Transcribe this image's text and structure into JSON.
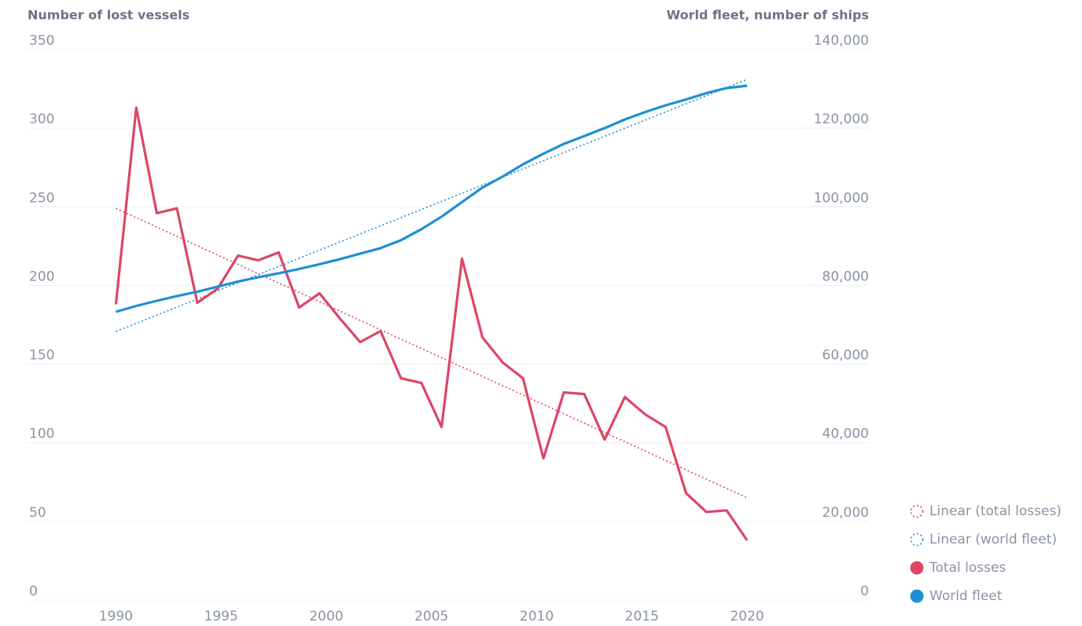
{
  "chart_data": {
    "type": "line",
    "y_label": "Number of lost vessels",
    "y2_label": "World fleet, number of ships",
    "xlim": [
      1985.8,
      2022.8
    ],
    "xticks": [
      1990,
      1995,
      2000,
      2005,
      2010,
      2015,
      2020
    ],
    "ylim": [
      0,
      350
    ],
    "yticks": [
      0,
      50,
      100,
      150,
      200,
      250,
      300,
      350
    ],
    "y2lim": [
      0,
      140000
    ],
    "y2ticks": [
      0,
      {
        "value": 20000,
        "label": "20,000"
      },
      {
        "value": 40000,
        "label": "40,000"
      },
      {
        "value": 60000,
        "label": "60,000"
      },
      {
        "value": 80000,
        "label": "80,000"
      },
      {
        "value": 100000,
        "label": "100,000"
      },
      {
        "value": 120000,
        "label": "120,000"
      },
      {
        "value": 140000,
        "label": "140,000"
      }
    ],
    "grid": true,
    "legend": "right",
    "series": [
      {
        "name": "Linear (total losses)",
        "color": "#dc4666",
        "style": "dotted",
        "x": [
          1990,
          2020
        ],
        "values": [
          249,
          65
        ]
      },
      {
        "name": "Linear (world fleet)",
        "color": "#1f8fd2",
        "style": "dotted",
        "axis": "y2",
        "x": [
          1990,
          2020
        ],
        "values": [
          68300,
          132400
        ]
      },
      {
        "name": "Total losses",
        "color": "#dc4666",
        "style": "solid",
        "x": [
          1990,
          1990.97,
          1991.94,
          1992.9,
          1993.87,
          1994.84,
          1995.81,
          1996.77,
          1997.74,
          1998.71,
          1999.68,
          2000.65,
          2001.61,
          2002.58,
          2003.55,
          2004.52,
          2005.48,
          2006.45,
          2007.42,
          2008.39,
          2009.35,
          2010.32,
          2011.29,
          2012.26,
          2013.23,
          2014.19,
          2015.16,
          2016.13,
          2017.1,
          2018.06,
          2019.03,
          2020
        ],
        "values": [
          188,
          313,
          246,
          249,
          189,
          198,
          219,
          216,
          221,
          186,
          195,
          179,
          164,
          171,
          141,
          138,
          110,
          217,
          167,
          151,
          141,
          90,
          132,
          131,
          102,
          129,
          118,
          110,
          68,
          56,
          57,
          38
        ]
      },
      {
        "name": "World fleet",
        "color": "#1f8fd2",
        "style": "solid",
        "axis": "y2",
        "x": [
          1990,
          1990.97,
          1991.94,
          1992.9,
          1993.87,
          1994.84,
          1995.81,
          1996.77,
          1997.74,
          1998.71,
          1999.68,
          2000.65,
          2001.61,
          2002.58,
          2003.55,
          2004.52,
          2005.48,
          2006.45,
          2007.42,
          2008.39,
          2009.35,
          2010.32,
          2011.29,
          2012.26,
          2013.23,
          2014.19,
          2015.16,
          2016.13,
          2017.1,
          2018.06,
          2019.03,
          2020
        ],
        "values": [
          73300,
          74800,
          76100,
          77300,
          78400,
          79700,
          81000,
          82100,
          83100,
          84200,
          85400,
          86700,
          88100,
          89500,
          91500,
          94300,
          97500,
          101200,
          104900,
          107700,
          110800,
          113500,
          116000,
          118000,
          120000,
          122200,
          124100,
          125800,
          127300,
          128900,
          130200,
          130800
        ]
      }
    ]
  }
}
